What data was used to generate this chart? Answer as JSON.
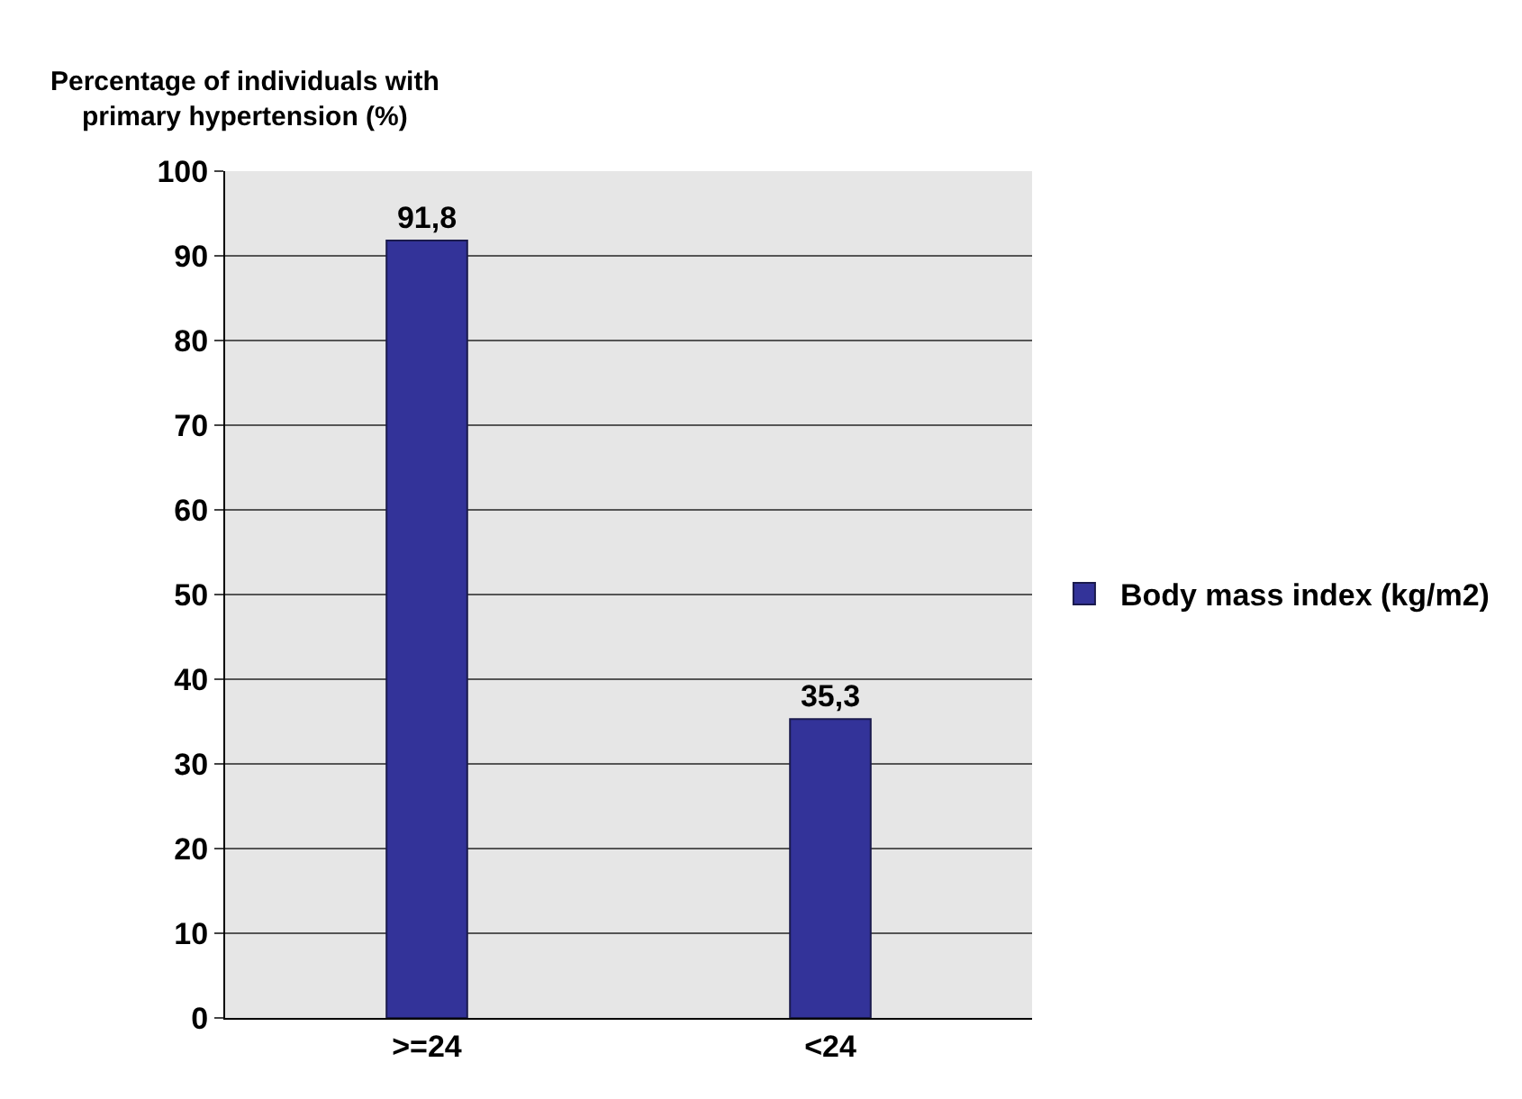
{
  "chart_data": {
    "type": "bar",
    "ylabel": "Percentage of individuals with primary hypertension (%)",
    "categories": [
      ">=24",
      "<24"
    ],
    "series": [
      {
        "name": "Body mass index (kg/m2)",
        "color": "#333399",
        "values": [
          91.8,
          35.3
        ],
        "value_labels": [
          "91,8",
          "35,3"
        ]
      }
    ],
    "ylim": [
      0,
      100
    ],
    "yticks": [
      0,
      10,
      20,
      30,
      40,
      50,
      60,
      70,
      80,
      90,
      100
    ],
    "grid": "y",
    "legend": "right"
  }
}
